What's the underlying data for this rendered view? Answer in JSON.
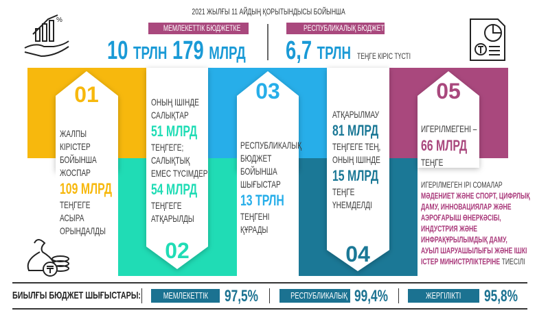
{
  "header": {
    "title": "2021 ЖЫЛҒЫ 11 АЙДЫҢ ҚОРЫТЫНДЫСЫ БОЙЫНША",
    "state_label": "МЕМЛЕКЕТТІК БЮДЖЕТКЕ",
    "state_value_a": "10",
    "state_unit_a": "ТРЛН",
    "state_value_b": "179",
    "state_unit_b": "МЛРД",
    "rep_label": "РЕСПУБЛИКАЛЫҚ БЮДЖЕТКЕ",
    "rep_value": "6,7",
    "rep_unit": "ТРЛН",
    "rep_suffix": "ТЕҢГЕ КІРІС ТҮСТІ"
  },
  "colors": {
    "yellow": "#f7b80d",
    "mint": "#20dcb5",
    "blue": "#27aee9",
    "teal": "#1b7896",
    "magenta": "#a9487d"
  },
  "columns": [
    {
      "number": "01",
      "lines": [
        {
          "t": "ЖАЛПЫ"
        },
        {
          "t": "КІРІСТЕР"
        },
        {
          "t": "БОЙЫНША"
        },
        {
          "t": "ЖОСПАР"
        },
        {
          "t": "109 МЛРД",
          "hl": true
        },
        {
          "t": "ТЕҢГЕГЕ"
        },
        {
          "t": "АСЫРА"
        },
        {
          "t": "ОРЫНДАЛДЫ"
        }
      ]
    },
    {
      "number": "02",
      "lines": [
        {
          "t": "ОНЫҢ ІШІНДЕ"
        },
        {
          "t": "САЛЫҚТАР"
        },
        {
          "t": "51 МЛРД",
          "hl": true
        },
        {
          "t": "ТЕҢГЕГЕ;"
        },
        {
          "t": "САЛЫҚТЫҚ"
        },
        {
          "t": "ЕМЕС ТҮСІМДЕР"
        },
        {
          "t": "54 МЛРД",
          "hl": true
        },
        {
          "t": "ТЕҢГЕГЕ"
        },
        {
          "t": "АТҚАРЫЛДЫ"
        }
      ]
    },
    {
      "number": "03",
      "lines": [
        {
          "t": "РЕСПУБЛИКАЛЫҚ"
        },
        {
          "t": "БЮДЖЕТ"
        },
        {
          "t": "БОЙЫНША"
        },
        {
          "t": "ШЫҒЫСТАР"
        },
        {
          "t": "13 ТРЛН",
          "hl": true
        },
        {
          "t": "ТЕҢГЕНІ"
        },
        {
          "t": "ҚҰРАДЫ"
        }
      ]
    },
    {
      "number": "04",
      "lines": [
        {
          "t": "АТҚАРЫЛМАУ"
        },
        {
          "t": "81 МЛРД",
          "hl": true
        },
        {
          "t": "ТЕҢГЕГЕ ТЕҢ,"
        },
        {
          "t": "ОНЫҢ ІШІНДЕ"
        },
        {
          "t": "15 МЛРД",
          "hl": true
        },
        {
          "t": "ТЕҢГЕ"
        },
        {
          "t": "ҮНЕМДЕЛДІ"
        }
      ]
    },
    {
      "number": "05",
      "lines": [
        {
          "t": "ИГЕРІЛМЕГЕНІ –"
        },
        {
          "t": "66 МЛРД",
          "hl": true
        },
        {
          "t": "ТЕҢГЕ"
        }
      ]
    }
  ],
  "unspent": {
    "heading": "ИГЕРІЛМЕГЕН ІРІ СОМАЛАР",
    "lines": [
      "МӘДЕНИЕТ ЖӘНЕ СПОРТ, ЦИФРЛЫҚ",
      "ДАМУ, ИННОВАЦИЯЛАР ЖӘНЕ",
      "АЭРОҒАРЫШ ӨНЕРКӘСІБІ,",
      "ИНДУСТРИЯ ЖӘНЕ",
      "ИНФРАҚҰРЫЛЫМДЫҚ ДАМУ,",
      "АУЫЛ ШАРУАШЫЛЫҒЫ ЖӘНЕ ІШКІ",
      "ІСТЕР МИНИСТРЛІКТЕРІНЕ"
    ],
    "suffix": "ТИЕСІЛІ"
  },
  "footer": {
    "label": "БИЫЛҒЫ БЮДЖЕТ ШЫҒЫСТАРЫ:",
    "items": [
      {
        "name": "МЕМЛЕКЕТТІК",
        "value": "97,5%"
      },
      {
        "name": "РЕСПУБЛИКАЛЫҚ",
        "value": "99,4%"
      },
      {
        "name": "ЖЕРГІЛІКТІ",
        "value": "95,8%"
      }
    ]
  }
}
